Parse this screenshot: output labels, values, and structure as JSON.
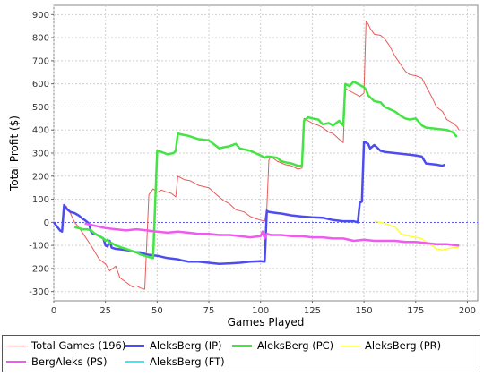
{
  "chart_data": {
    "type": "line",
    "xlabel": "Games Played",
    "ylabel": "Total Profit ($)",
    "xlim": [
      0,
      205
    ],
    "ylim": [
      -340,
      940
    ],
    "xticks": [
      0,
      25,
      50,
      75,
      100,
      125,
      150,
      175,
      200
    ],
    "yticks": [
      -300,
      -200,
      -100,
      0,
      100,
      200,
      300,
      400,
      500,
      600,
      700,
      800,
      900
    ],
    "grid": true,
    "legend_position": "bottom",
    "series": [
      {
        "name": "Total Games (196)",
        "color": "#e85a5a",
        "width": 1,
        "x": [
          0,
          3,
          4,
          5,
          6,
          8,
          10,
          12,
          15,
          18,
          20,
          22,
          25,
          27,
          30,
          32,
          35,
          38,
          40,
          42,
          44,
          46,
          48,
          50,
          52,
          55,
          57,
          59,
          60,
          63,
          66,
          70,
          75,
          78,
          82,
          85,
          88,
          92,
          95,
          98,
          100,
          102,
          103,
          104,
          105,
          108,
          112,
          115,
          118,
          120,
          121,
          125,
          128,
          130,
          133,
          135,
          138,
          140,
          141,
          145,
          148,
          150,
          151,
          152,
          153,
          155,
          158,
          160,
          162,
          165,
          168,
          170,
          172,
          175,
          178,
          180,
          183,
          185,
          188,
          190,
          193,
          195,
          196
        ],
        "y": [
          0,
          -35,
          -40,
          75,
          70,
          40,
          0,
          -20,
          -60,
          -100,
          -130,
          -160,
          -180,
          -210,
          -190,
          -240,
          -260,
          -280,
          -275,
          -285,
          -290,
          120,
          145,
          130,
          140,
          130,
          125,
          110,
          200,
          185,
          180,
          160,
          150,
          125,
          95,
          80,
          55,
          45,
          25,
          15,
          10,
          5,
          60,
          270,
          285,
          265,
          250,
          245,
          230,
          235,
          450,
          430,
          420,
          410,
          390,
          385,
          360,
          345,
          580,
          560,
          545,
          560,
          870,
          860,
          840,
          815,
          810,
          795,
          770,
          720,
          680,
          655,
          640,
          635,
          625,
          590,
          540,
          500,
          480,
          445,
          430,
          415,
          400
        ]
      },
      {
        "name": "AleksBerg (IP)",
        "color": "#4c4cf0",
        "width": 2.5,
        "x": [
          0,
          3,
          4,
          5,
          6,
          8,
          10,
          12,
          14,
          15,
          17,
          18,
          19,
          20,
          22,
          24,
          25,
          26,
          27,
          28,
          30,
          35,
          38,
          40,
          42,
          45,
          50,
          55,
          60,
          62,
          65,
          70,
          75,
          80,
          85,
          90,
          95,
          100,
          102,
          103,
          104,
          108,
          110,
          115,
          120,
          125,
          130,
          135,
          140,
          145,
          147,
          148,
          149,
          150,
          151,
          152,
          153,
          155,
          158,
          160,
          165,
          170,
          175,
          178,
          180,
          185,
          188,
          189
        ],
        "y": [
          0,
          -35,
          -40,
          75,
          60,
          45,
          40,
          30,
          15,
          10,
          -5,
          -40,
          -50,
          -50,
          -60,
          -70,
          -100,
          -105,
          -80,
          -110,
          -115,
          -120,
          -125,
          -130,
          -130,
          -140,
          -145,
          -155,
          -160,
          -165,
          -170,
          -170,
          -175,
          -180,
          -178,
          -175,
          -170,
          -168,
          -170,
          50,
          45,
          40,
          38,
          30,
          25,
          22,
          20,
          10,
          5,
          5,
          0,
          85,
          90,
          350,
          345,
          340,
          320,
          335,
          310,
          305,
          300,
          295,
          290,
          285,
          255,
          250,
          245,
          250
        ]
      },
      {
        "name": "AleksBerg (PC)",
        "color": "#44e444",
        "width": 2.5,
        "x": [
          10,
          12,
          14,
          16,
          18,
          20,
          22,
          24,
          25,
          26,
          27,
          28,
          30,
          33,
          35,
          38,
          40,
          42,
          44,
          46,
          48,
          50,
          52,
          55,
          58,
          59,
          60,
          62,
          65,
          70,
          75,
          80,
          82,
          85,
          88,
          90,
          95,
          100,
          102,
          103,
          104,
          108,
          110,
          112,
          115,
          118,
          120,
          121,
          123,
          125,
          128,
          130,
          133,
          135,
          138,
          140,
          141,
          143,
          145,
          148,
          150,
          151,
          152,
          155,
          158,
          160,
          165,
          168,
          170,
          172,
          175,
          178,
          180,
          185,
          190,
          193,
          195
        ],
        "y": [
          -20,
          -25,
          -30,
          -30,
          -35,
          -50,
          -60,
          -70,
          -80,
          -75,
          -90,
          -90,
          -100,
          -110,
          -115,
          -125,
          -130,
          -140,
          -145,
          -150,
          -155,
          310,
          305,
          295,
          300,
          310,
          385,
          380,
          375,
          360,
          355,
          320,
          325,
          330,
          340,
          320,
          310,
          290,
          280,
          285,
          285,
          280,
          265,
          260,
          255,
          245,
          245,
          440,
          455,
          450,
          445,
          425,
          430,
          420,
          440,
          420,
          600,
          590,
          610,
          595,
          585,
          575,
          550,
          525,
          520,
          500,
          480,
          460,
          450,
          445,
          450,
          420,
          410,
          405,
          400,
          390,
          370
        ]
      },
      {
        "name": "AleksBerg (PR)",
        "color": "#ffff33",
        "width": 1.5,
        "x": [
          155,
          158,
          160,
          162,
          165,
          168,
          170,
          172,
          175,
          178,
          180,
          182,
          185,
          188,
          190,
          193,
          195,
          196
        ],
        "y": [
          5,
          0,
          -5,
          -10,
          -20,
          -50,
          -55,
          -60,
          -65,
          -70,
          -85,
          -95,
          -115,
          -120,
          -115,
          -110,
          -110,
          -105
        ]
      },
      {
        "name": "BergAleks (PS)",
        "color": "#f05af0",
        "width": 2.5,
        "x": [
          15,
          20,
          25,
          30,
          35,
          40,
          45,
          50,
          55,
          60,
          65,
          70,
          75,
          80,
          85,
          90,
          95,
          100,
          101,
          102,
          103,
          105,
          110,
          115,
          120,
          125,
          130,
          135,
          140,
          145,
          150,
          155,
          160,
          165,
          170,
          175,
          180,
          185,
          190,
          195,
          196
        ],
        "y": [
          -5,
          -15,
          -25,
          -30,
          -35,
          -30,
          -35,
          -40,
          -45,
          -40,
          -45,
          -50,
          -50,
          -55,
          -55,
          -60,
          -65,
          -60,
          -40,
          -70,
          -50,
          -55,
          -55,
          -60,
          -60,
          -65,
          -65,
          -70,
          -70,
          -80,
          -75,
          -80,
          -80,
          -80,
          -85,
          -85,
          -90,
          -95,
          -95,
          -100,
          -100
        ]
      },
      {
        "name": "AleksBerg (FT)",
        "color": "#44e8e8",
        "width": 2.5,
        "x": [],
        "y": []
      }
    ]
  }
}
